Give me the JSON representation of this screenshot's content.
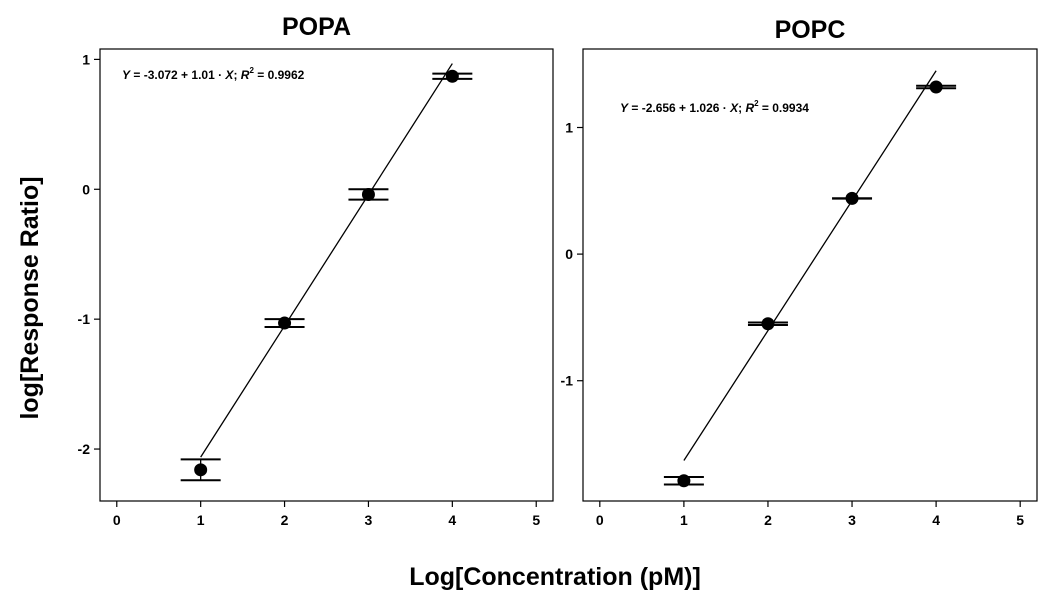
{
  "figure": {
    "xlabel": "Log[Concentration (pM)]",
    "ylabel": "log[Response Ratio]"
  },
  "chart_data": [
    {
      "type": "scatter",
      "title": "POPA",
      "xlim": [
        -0.2,
        5.2
      ],
      "ylim": [
        -2.4,
        1.08
      ],
      "xticks": [
        0,
        1,
        2,
        3,
        4,
        5
      ],
      "yticks": [
        -2,
        -1,
        0,
        1
      ],
      "fit": {
        "intercept": -3.072,
        "slope": 1.01,
        "r2": 0.9962
      },
      "equation": {
        "intercept": "-3.072",
        "slope": "1.01",
        "r2": "0.9962"
      },
      "points": [
        {
          "x": 1,
          "y": -2.16,
          "err": 0.08
        },
        {
          "x": 2,
          "y": -1.03,
          "err": 0.03
        },
        {
          "x": 3,
          "y": -0.04,
          "err": 0.04
        },
        {
          "x": 4,
          "y": 0.87,
          "err": 0.02
        }
      ],
      "grid": false
    },
    {
      "type": "scatter",
      "title": "POPC",
      "xlim": [
        -0.2,
        5.2
      ],
      "ylim": [
        -1.95,
        1.62
      ],
      "xticks": [
        0,
        1,
        2,
        3,
        4,
        5
      ],
      "yticks": [
        -1,
        0,
        1
      ],
      "fit": {
        "intercept": -2.656,
        "slope": 1.026,
        "r2": 0.9934
      },
      "equation": {
        "intercept": "-2.656",
        "slope": "1.026",
        "r2": "0.9934"
      },
      "points": [
        {
          "x": 1,
          "y": -1.79,
          "err": 0.03
        },
        {
          "x": 2,
          "y": -0.55,
          "err": 0.01
        },
        {
          "x": 3,
          "y": 0.44,
          "err": 0.0
        },
        {
          "x": 4,
          "y": 1.32,
          "err": 0.01
        }
      ],
      "grid": false
    }
  ]
}
